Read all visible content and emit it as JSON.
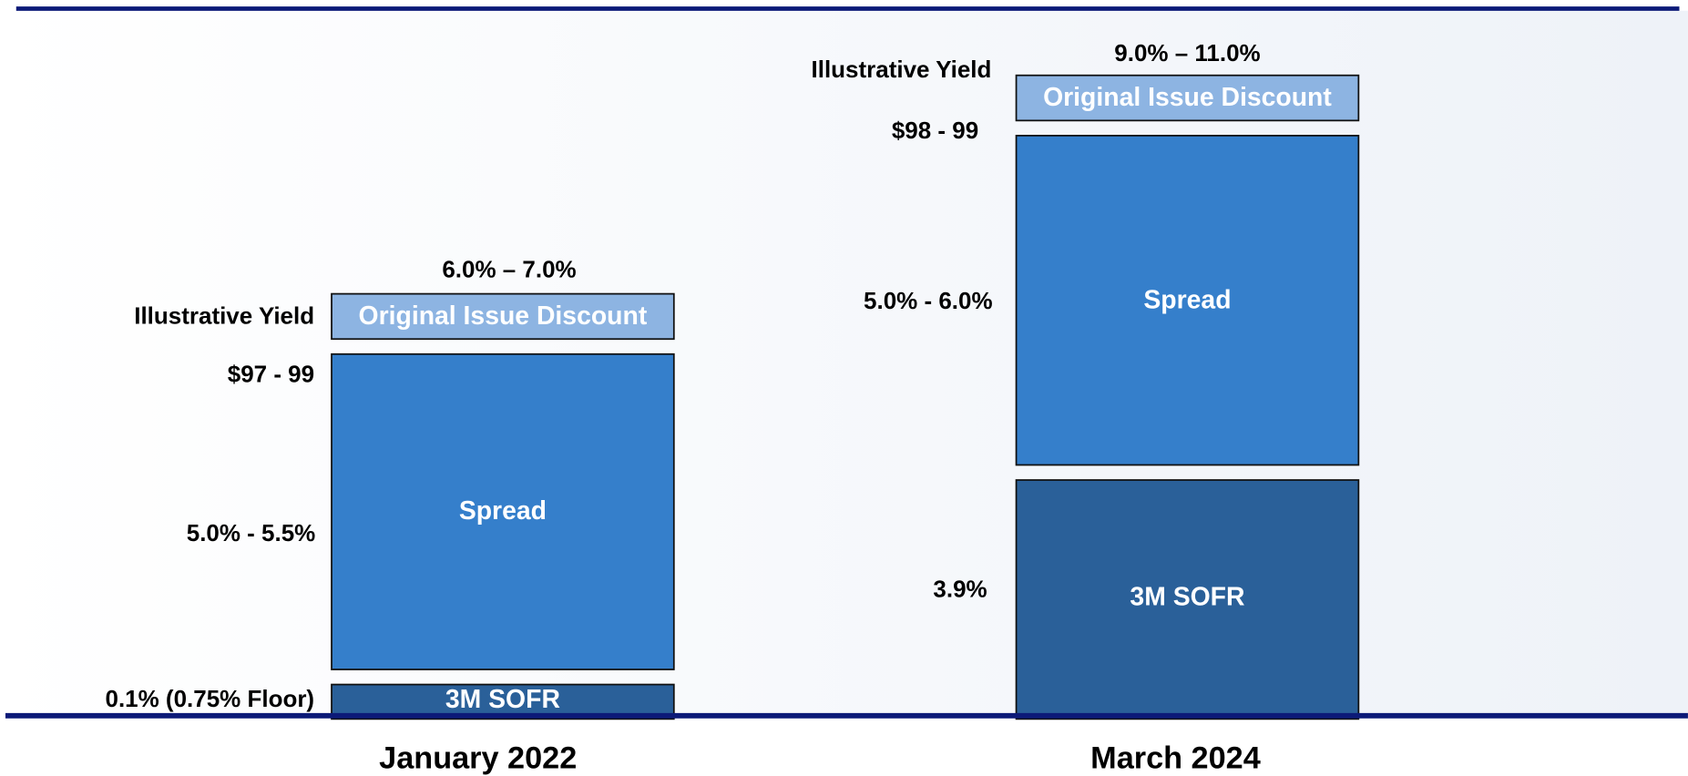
{
  "columns": [
    {
      "label": "January 2022",
      "yield_range": "6.0% – 7.0%",
      "yield_label": "Illustrative Yield",
      "oid_label": "Original Issue Discount",
      "price": "$97 - 99",
      "spread_label": "Spread",
      "spread_range": "5.0% - 5.5%",
      "sofr_label": "3M SOFR",
      "sofr_value": "0.1% (0.75% Floor)"
    },
    {
      "label": "March 2024",
      "yield_range": "9.0% – 11.0%",
      "yield_label": "Illustrative Yield",
      "oid_label": "Original Issue Discount",
      "price": "$98 - 99",
      "spread_label": "Spread",
      "spread_range": "5.0% - 6.0%",
      "sofr_label": "3M SOFR",
      "sofr_value": "3.9%"
    }
  ]
}
